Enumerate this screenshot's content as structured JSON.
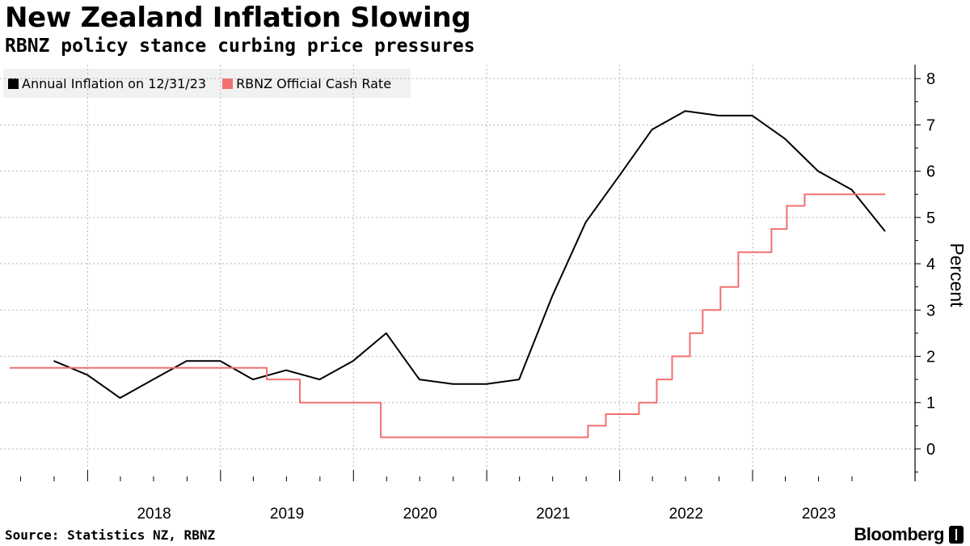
{
  "header": {
    "title": "New Zealand Inflation Slowing",
    "subtitle": "RBNZ policy stance curbing price pressures"
  },
  "legend": {
    "items": [
      {
        "label": "Annual Inflation on 12/31/23",
        "color": "#000000"
      },
      {
        "label": "RBNZ Official Cash Rate",
        "color": "#f07070"
      }
    ]
  },
  "footer": {
    "source": "Source: Statistics NZ, RBNZ",
    "brand": "Bloomberg"
  },
  "chart_data": {
    "type": "line",
    "title": "New Zealand Inflation Slowing",
    "subtitle": "RBNZ policy stance curbing price pressures",
    "ylabel": "Percent",
    "xlabel": "",
    "ylim": [
      -0.7,
      8.3
    ],
    "xlim": [
      "2017-06-01",
      "2023-12-31"
    ],
    "yticks": [
      0,
      1,
      2,
      3,
      4,
      5,
      6,
      7,
      8
    ],
    "xtick_labels": [
      "2018",
      "2019",
      "2020",
      "2021",
      "2022",
      "2023"
    ],
    "grid": true,
    "legend_position": "top-left",
    "series": [
      {
        "name": "Annual Inflation on 12/31/23",
        "color": "#000000",
        "step": false,
        "points": [
          [
            "2017-09-30",
            1.9
          ],
          [
            "2017-12-31",
            1.6
          ],
          [
            "2018-03-31",
            1.1
          ],
          [
            "2018-06-30",
            1.5
          ],
          [
            "2018-09-30",
            1.9
          ],
          [
            "2018-12-31",
            1.9
          ],
          [
            "2019-03-31",
            1.5
          ],
          [
            "2019-06-30",
            1.7
          ],
          [
            "2019-09-30",
            1.5
          ],
          [
            "2019-12-31",
            1.9
          ],
          [
            "2020-03-31",
            2.5
          ],
          [
            "2020-06-30",
            1.5
          ],
          [
            "2020-09-30",
            1.4
          ],
          [
            "2020-12-31",
            1.4
          ],
          [
            "2021-03-31",
            1.5
          ],
          [
            "2021-06-30",
            3.3
          ],
          [
            "2021-09-30",
            4.9
          ],
          [
            "2021-12-31",
            5.9
          ],
          [
            "2022-03-31",
            6.9
          ],
          [
            "2022-06-30",
            7.3
          ],
          [
            "2022-09-30",
            7.2
          ],
          [
            "2022-12-31",
            7.2
          ],
          [
            "2023-03-31",
            6.7
          ],
          [
            "2023-06-30",
            6.0
          ],
          [
            "2023-09-30",
            5.6
          ],
          [
            "2023-12-31",
            4.7
          ]
        ]
      },
      {
        "name": "RBNZ Official Cash Rate",
        "color": "#f07070",
        "step": true,
        "points": [
          [
            "2017-06-01",
            1.75
          ],
          [
            "2019-05-08",
            1.5
          ],
          [
            "2019-08-07",
            1.0
          ],
          [
            "2020-03-16",
            0.25
          ],
          [
            "2021-10-06",
            0.5
          ],
          [
            "2021-11-24",
            0.75
          ],
          [
            "2022-02-23",
            1.0
          ],
          [
            "2022-04-13",
            1.5
          ],
          [
            "2022-05-25",
            2.0
          ],
          [
            "2022-07-13",
            2.5
          ],
          [
            "2022-08-17",
            3.0
          ],
          [
            "2022-10-05",
            3.5
          ],
          [
            "2022-11-23",
            4.25
          ],
          [
            "2023-02-22",
            4.75
          ],
          [
            "2023-04-05",
            5.25
          ],
          [
            "2023-05-24",
            5.5
          ],
          [
            "2023-12-31",
            5.5
          ]
        ]
      }
    ]
  }
}
